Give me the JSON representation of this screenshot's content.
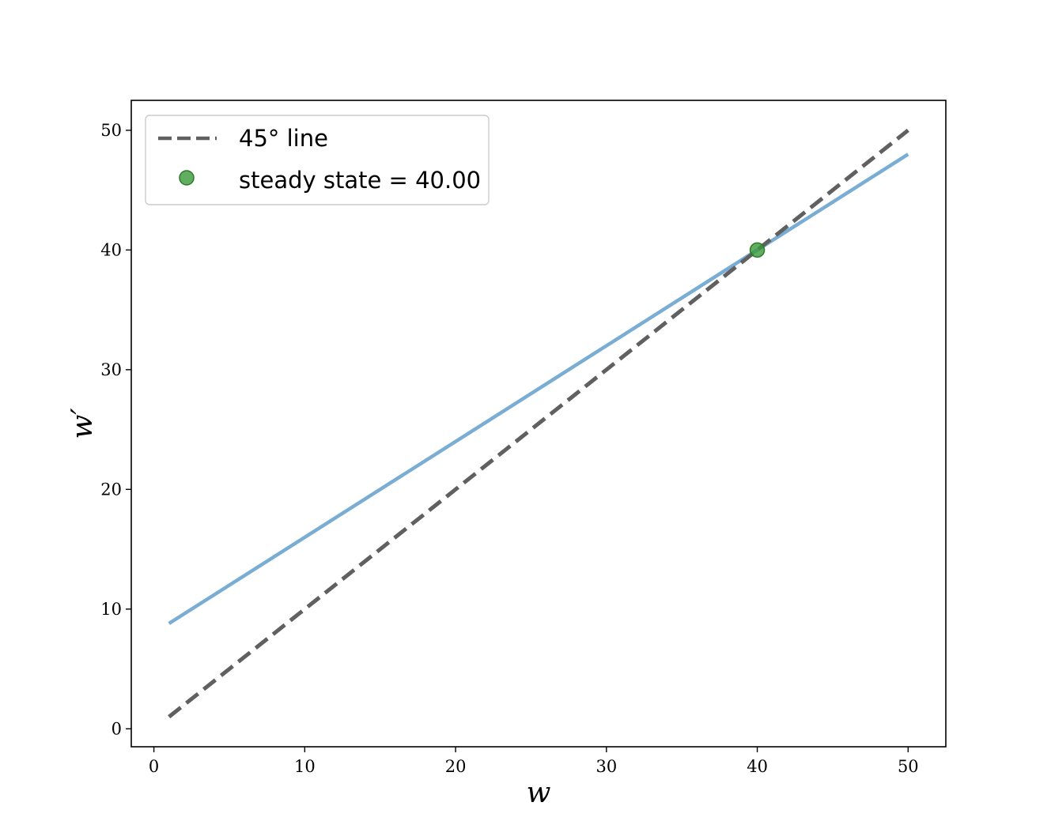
{
  "chart_data": {
    "type": "line",
    "xlabel": "w",
    "ylabel": "w′",
    "xlim": [
      -1.5,
      52.5
    ],
    "ylim": [
      -1.5,
      52.5
    ],
    "xticks": [
      0,
      10,
      20,
      30,
      40,
      50
    ],
    "yticks": [
      0,
      10,
      20,
      30,
      40,
      50
    ],
    "grid": false,
    "legend_position": "top-left",
    "series": [
      {
        "kind": "line",
        "style": "solid",
        "color": "#7aadd4",
        "x": [
          1,
          50
        ],
        "y": [
          8.8,
          48.0
        ]
      },
      {
        "name": "45° line",
        "kind": "line",
        "style": "dashed",
        "color": "#606060",
        "x": [
          1,
          50
        ],
        "y": [
          1,
          50
        ]
      },
      {
        "name": "steady state = 40.00",
        "kind": "point",
        "color": "#3a9a3a",
        "x": [
          40.0
        ],
        "y": [
          40.0
        ]
      }
    ]
  }
}
